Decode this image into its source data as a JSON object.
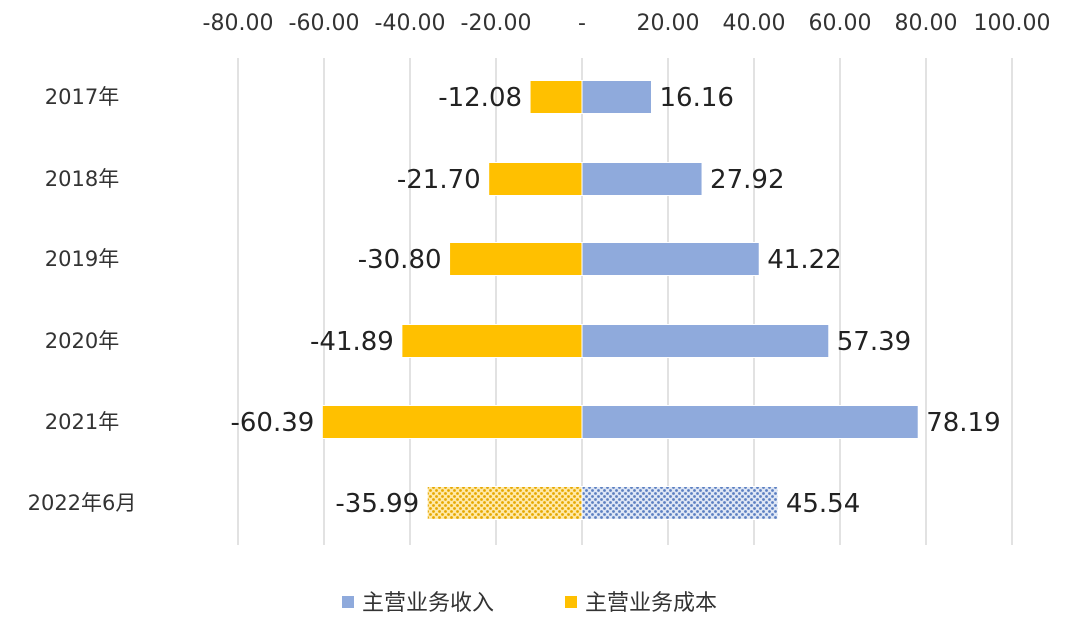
{
  "chart_data": {
    "type": "bar",
    "orientation": "horizontal",
    "stacked": "diverging",
    "categories": [
      "2017年",
      "2018年",
      "2019年",
      "2020年",
      "2021年",
      "2022年6月"
    ],
    "series": [
      {
        "name": "主营业务收入",
        "color": "#8faadc",
        "values": [
          16.16,
          27.92,
          41.22,
          57.39,
          78.19,
          45.54
        ],
        "labels": [
          "16.16",
          "27.92",
          "41.22",
          "57.39",
          "78.19",
          "45.54"
        ]
      },
      {
        "name": "主营业务成本",
        "color": "#ffc000",
        "values": [
          -12.08,
          -21.7,
          -30.8,
          -41.89,
          -60.39,
          -35.99
        ],
        "labels": [
          "-12.08",
          "-21.70",
          "-30.80",
          "-41.89",
          "-60.39",
          "-35.99"
        ]
      }
    ],
    "patterned_categories": [
      "2022年6月"
    ],
    "xlim": [
      -80,
      100
    ],
    "x_ticks": [
      -80,
      -60,
      -40,
      -20,
      0,
      20,
      40,
      60,
      80,
      100
    ],
    "x_tick_labels": [
      "-80.00",
      "-60.00",
      "-40.00",
      "-20.00",
      "-",
      "20.00",
      "40.00",
      "60.00",
      "80.00",
      "100.00"
    ],
    "x_axis_position": "top",
    "grid": true,
    "legend": "bottom",
    "title": "",
    "xlabel": "",
    "ylabel": ""
  }
}
